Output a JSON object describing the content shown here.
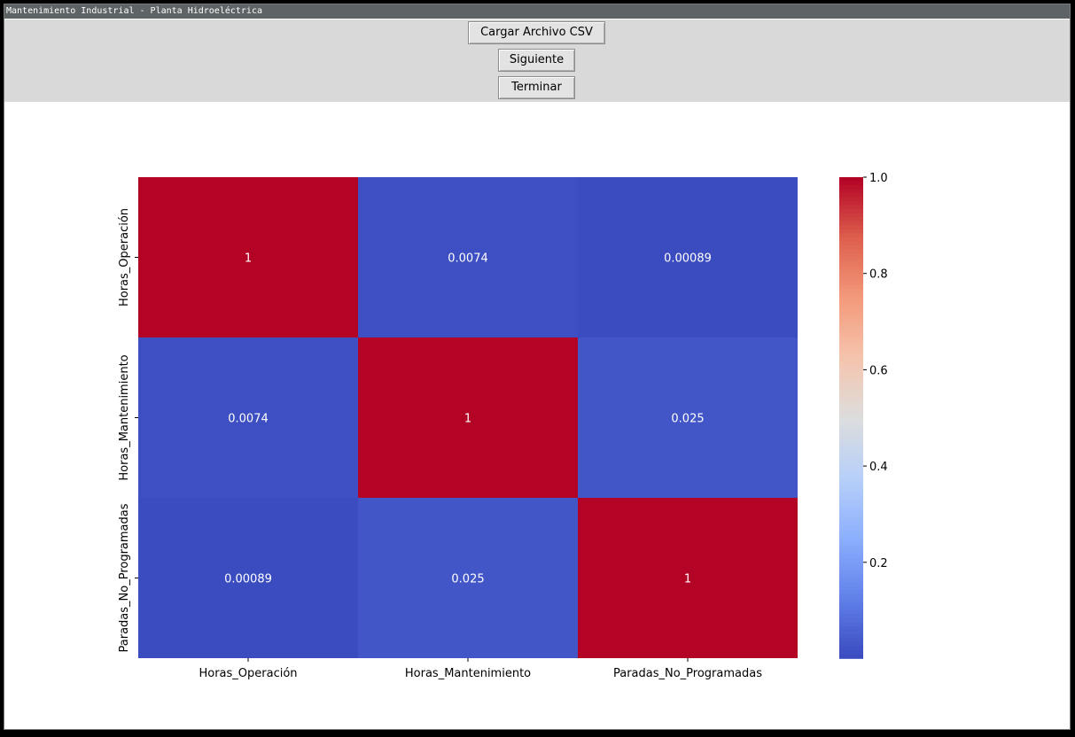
{
  "window": {
    "title": "Mantenimiento Industrial - Planta Hidroeléctrica"
  },
  "toolbar": {
    "load_csv_label": "Cargar Archivo CSV",
    "next_label": "Siguiente",
    "finish_label": "Terminar"
  },
  "chart_data": {
    "type": "heatmap",
    "title": "",
    "colormap": "coolwarm",
    "x_categories": [
      "Horas_Operación",
      "Horas_Mantenimiento",
      "Paradas_No_Programadas"
    ],
    "y_categories": [
      "Horas_Operación",
      "Horas_Mantenimiento",
      "Paradas_No_Programadas"
    ],
    "values": [
      [
        1,
        0.0074,
        0.00089
      ],
      [
        0.0074,
        1,
        0.025
      ],
      [
        0.00089,
        0.025,
        1
      ]
    ],
    "labels": [
      [
        "1",
        "0.0074",
        "0.00089"
      ],
      [
        "0.0074",
        "1",
        "0.025"
      ],
      [
        "0.00089",
        "0.025",
        "1"
      ]
    ],
    "colorbar": {
      "min": 0.00089,
      "max": 1.0,
      "ticks": [
        "0.2",
        "0.4",
        "0.6",
        "0.8",
        "1.0"
      ],
      "tick_values": [
        0.2,
        0.4,
        0.6,
        0.8,
        1.0
      ]
    }
  }
}
